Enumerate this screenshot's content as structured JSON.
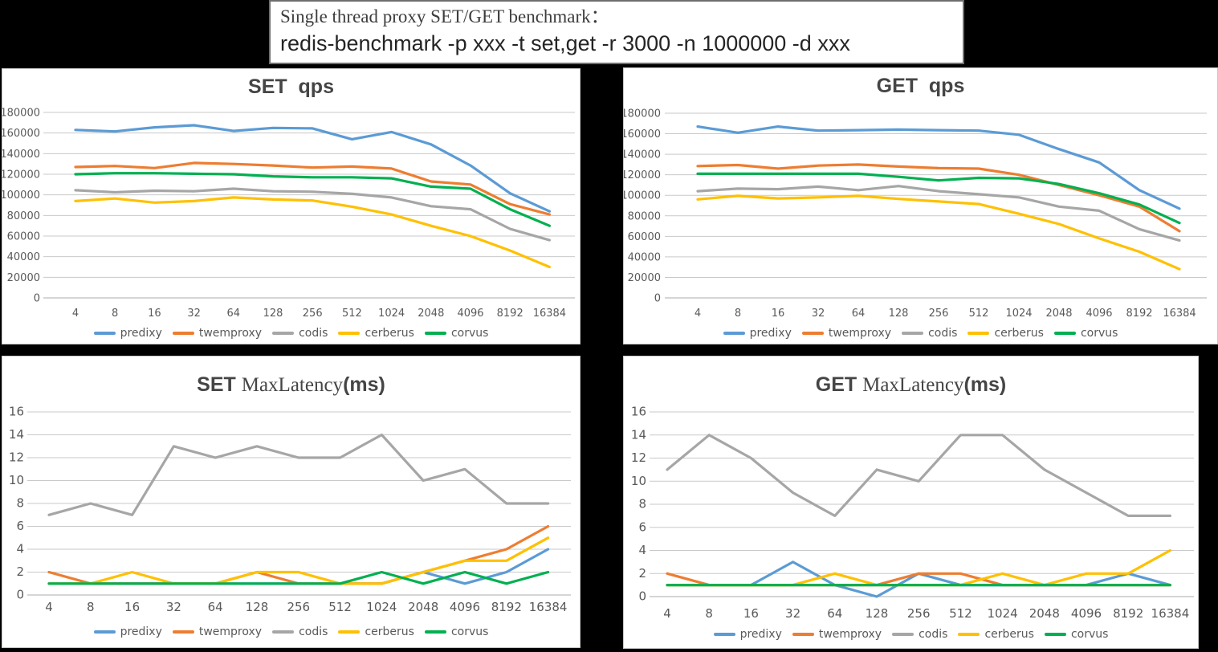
{
  "header": {
    "line1": "Single thread proxy SET/GET benchmark：",
    "line2": "redis-benchmark -p xxx -t set,get -r 3000 -n 1000000 -d xxx"
  },
  "palette": {
    "predixy": "#5B9BD5",
    "twemproxy": "#ED7D31",
    "codis": "#A6A6A6",
    "cerberus": "#FFC000",
    "corvus": "#00B050",
    "gridline": "#C9C9C9",
    "axis": "#ABABAB",
    "tick_text": "#595959",
    "title_text": "#454545"
  },
  "legend_labels": [
    "predixy",
    "twemproxy",
    "codis",
    "cerberus",
    "corvus"
  ],
  "chart_data": [
    {
      "id": "set-qps",
      "type": "line",
      "title": "SET  qps",
      "title_parts": [
        {
          "text": "SET  qps",
          "serif": false
        }
      ],
      "categories": [
        "4",
        "8",
        "16",
        "32",
        "64",
        "128",
        "256",
        "512",
        "1024",
        "2048",
        "4096",
        "8192",
        "16384"
      ],
      "ylim": [
        0,
        180000
      ],
      "ystep": 20000,
      "grid": true,
      "legend_position": "bottom",
      "series": [
        {
          "name": "predixy",
          "values": [
            163000,
            161500,
            165500,
            167500,
            162000,
            165000,
            164500,
            154000,
            161000,
            149000,
            128500,
            101500,
            84000
          ]
        },
        {
          "name": "twemproxy",
          "values": [
            127000,
            128000,
            126000,
            131000,
            130000,
            128500,
            126500,
            127500,
            125500,
            113000,
            110000,
            91000,
            81000
          ]
        },
        {
          "name": "codis",
          "values": [
            104500,
            102500,
            104000,
            103500,
            106000,
            103500,
            103000,
            101000,
            97500,
            89000,
            86000,
            67000,
            56000
          ]
        },
        {
          "name": "cerberus",
          "values": [
            94000,
            96500,
            92500,
            94000,
            97500,
            95500,
            94500,
            88500,
            81000,
            70000,
            60000,
            46000,
            30000
          ]
        },
        {
          "name": "corvus",
          "values": [
            120000,
            121000,
            121000,
            120500,
            120000,
            118000,
            117000,
            117000,
            116000,
            108000,
            106000,
            86000,
            70000
          ]
        }
      ]
    },
    {
      "id": "get-qps",
      "type": "line",
      "title": "GET  qps",
      "title_parts": [
        {
          "text": "GET  qps",
          "serif": false
        }
      ],
      "categories": [
        "4",
        "8",
        "16",
        "32",
        "64",
        "128",
        "256",
        "512",
        "1024",
        "2048",
        "4096",
        "8192",
        "16384"
      ],
      "ylim": [
        0,
        180000
      ],
      "ystep": 20000,
      "grid": true,
      "legend_position": "bottom",
      "series": [
        {
          "name": "predixy",
          "values": [
            167000,
            161000,
            167000,
            163000,
            163500,
            164000,
            163500,
            163000,
            159000,
            145000,
            132000,
            105000,
            87000
          ]
        },
        {
          "name": "twemproxy",
          "values": [
            128500,
            129500,
            126000,
            129000,
            130000,
            128000,
            126500,
            126000,
            120000,
            110000,
            100000,
            89000,
            65000
          ]
        },
        {
          "name": "codis",
          "values": [
            104000,
            106500,
            106000,
            108500,
            105000,
            109000,
            104000,
            101000,
            98000,
            89000,
            85000,
            67000,
            56000
          ]
        },
        {
          "name": "cerberus",
          "values": [
            96000,
            99500,
            97000,
            98000,
            99500,
            96500,
            94000,
            91500,
            82000,
            72000,
            58000,
            45000,
            28000
          ]
        },
        {
          "name": "corvus",
          "values": [
            121000,
            121000,
            121000,
            121000,
            121000,
            118000,
            114500,
            117000,
            116500,
            111000,
            102000,
            91000,
            73000
          ]
        }
      ]
    },
    {
      "id": "set-lat",
      "type": "line",
      "title": "SET MaxLatency(ms)",
      "title_parts": [
        {
          "text": "SET ",
          "serif": false
        },
        {
          "text": "MaxLatency",
          "serif": true
        },
        {
          "text": "(ms)",
          "serif": false
        }
      ],
      "categories": [
        "4",
        "8",
        "16",
        "32",
        "64",
        "128",
        "256",
        "512",
        "1024",
        "2048",
        "4096",
        "8192",
        "16384"
      ],
      "ylim": [
        0,
        16
      ],
      "ystep": 2,
      "grid": true,
      "legend_position": "bottom",
      "series": [
        {
          "name": "predixy",
          "values": [
            1,
            1,
            1,
            1,
            1,
            1,
            1,
            1,
            1,
            2,
            1,
            2,
            4
          ]
        },
        {
          "name": "twemproxy",
          "values": [
            2,
            1,
            1,
            1,
            1,
            2,
            1,
            1,
            1,
            2,
            3,
            4,
            6
          ]
        },
        {
          "name": "codis",
          "values": [
            7,
            8,
            7,
            13,
            12,
            13,
            12,
            12,
            14,
            10,
            11,
            8,
            8
          ]
        },
        {
          "name": "cerberus",
          "values": [
            1,
            1,
            2,
            1,
            1,
            2,
            2,
            1,
            1,
            2,
            3,
            3,
            5
          ]
        },
        {
          "name": "corvus",
          "values": [
            1,
            1,
            1,
            1,
            1,
            1,
            1,
            1,
            2,
            1,
            2,
            1,
            2
          ]
        }
      ]
    },
    {
      "id": "get-lat",
      "type": "line",
      "title": "GET MaxLatency(ms)",
      "title_parts": [
        {
          "text": "GET ",
          "serif": false
        },
        {
          "text": "MaxLatency",
          "serif": true
        },
        {
          "text": "(ms)",
          "serif": false
        }
      ],
      "categories": [
        "4",
        "8",
        "16",
        "32",
        "64",
        "128",
        "256",
        "512",
        "1024",
        "2048",
        "4096",
        "8192",
        "16384"
      ],
      "ylim": [
        0,
        16
      ],
      "ystep": 2,
      "grid": true,
      "legend_position": "bottom",
      "series": [
        {
          "name": "predixy",
          "values": [
            1,
            1,
            1,
            3,
            1,
            0,
            2,
            1,
            1,
            1,
            1,
            2,
            1
          ]
        },
        {
          "name": "twemproxy",
          "values": [
            2,
            1,
            1,
            1,
            1,
            1,
            2,
            2,
            1,
            1,
            1,
            1,
            1
          ]
        },
        {
          "name": "codis",
          "values": [
            11,
            14,
            12,
            9,
            7,
            11,
            10,
            14,
            14,
            11,
            9,
            7,
            7
          ]
        },
        {
          "name": "cerberus",
          "values": [
            1,
            1,
            1,
            1,
            2,
            1,
            1,
            1,
            2,
            1,
            2,
            2,
            4
          ]
        },
        {
          "name": "corvus",
          "values": [
            1,
            1,
            1,
            1,
            1,
            1,
            1,
            1,
            1,
            1,
            1,
            1,
            1
          ]
        }
      ]
    }
  ]
}
